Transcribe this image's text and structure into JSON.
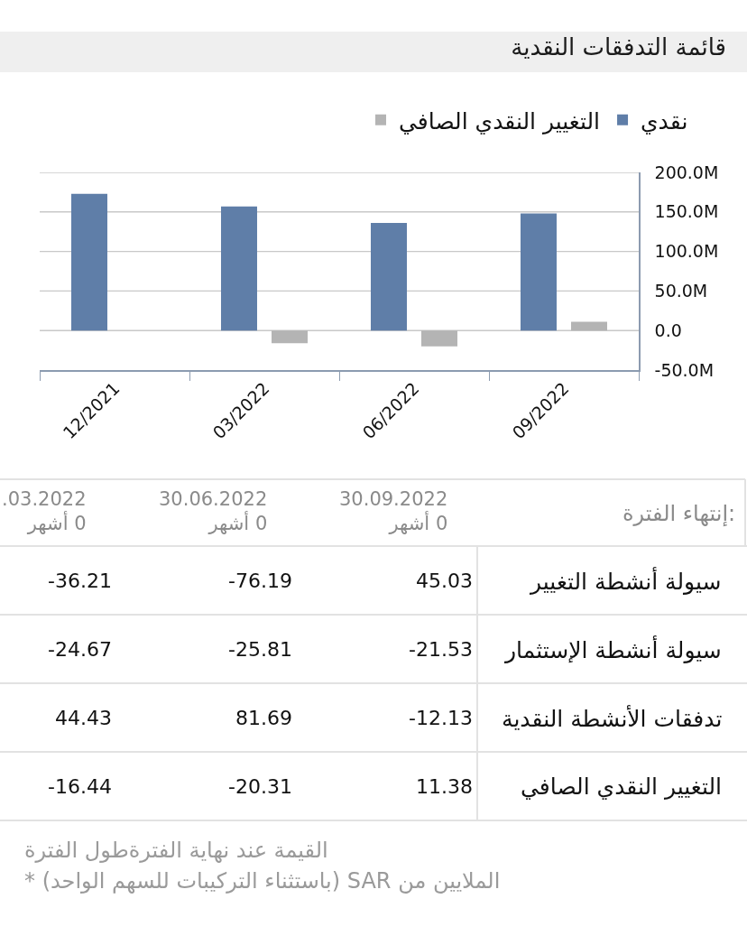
{
  "chart_data": [
    {
      "type": "bar",
      "title": "قائمة التدفقات النقدية",
      "categories": [
        "12/2021",
        "03/2022",
        "06/2022",
        "09/2022"
      ],
      "series": [
        {
          "name": "نقدي",
          "color": "#5f7ea8",
          "values": [
            173,
            157,
            136,
            148
          ]
        },
        {
          "name": "التغيير النقدي الصافي",
          "color": "#b4b4b4",
          "values": [
            null,
            -16,
            -20,
            11
          ]
        }
      ],
      "ylim": [
        -50,
        200
      ],
      "yticks": [
        {
          "value": -50,
          "label": "-50.0M"
        },
        {
          "value": 0,
          "label": "0.0"
        },
        {
          "value": 50,
          "label": "50.0M"
        },
        {
          "value": 100,
          "label": "100.0M"
        },
        {
          "value": 150,
          "label": "150.0M"
        },
        {
          "value": 200,
          "label": "200.0M"
        }
      ],
      "grid": "y",
      "legend": "top right"
    },
    {
      "type": "other",
      "xlabel": "إنتهاء الفترة:",
      "categories": [
        "30.09.2022\n0 أشهر",
        "30.06.2022\n0 أشهر",
        ".03.2022\n0 أشهر"
      ],
      "series": [
        {
          "name": "سيولة أنشطة التغيير",
          "values": [
            45.03,
            -76.19,
            -36.21
          ]
        },
        {
          "name": "سيولة أنشطة الإستثمار",
          "values": [
            -21.53,
            -25.81,
            -24.67
          ]
        },
        {
          "name": "تدفقات الأنشطة النقدية",
          "values": [
            -12.13,
            81.69,
            44.43
          ]
        },
        {
          "name": "التغيير النقدي الصافي",
          "values": [
            11.38,
            -20.31,
            -16.44
          ]
        }
      ],
      "data_labels": true,
      "annotations": [
        "القيمة عند نهاية الفترةطول الفترة",
        "الملايين من SAR (باستثناء التركيبات للسهم الواحد) *"
      ]
    }
  ]
}
